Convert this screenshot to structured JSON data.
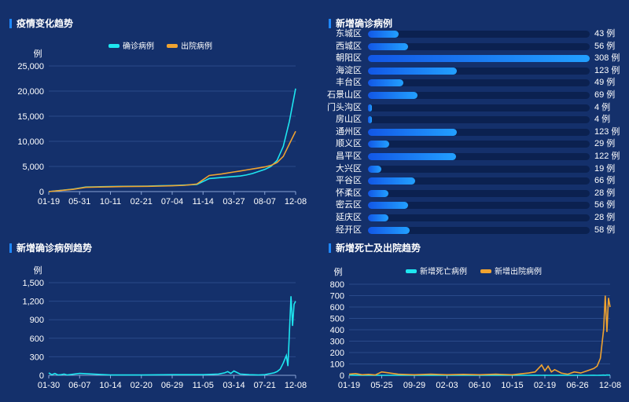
{
  "panels": {
    "trend": {
      "title": "疫情变化趋势"
    },
    "district": {
      "title": "新增确诊病例"
    },
    "newcases": {
      "title": "新增确诊病例趋势"
    },
    "deathdischarge": {
      "title": "新增死亡及出院趋势"
    }
  },
  "chart_data": [
    {
      "type": "line",
      "title": "疫情变化趋势",
      "ylabel": "例",
      "ylim": [
        0,
        25000
      ],
      "yticks": [
        "0",
        "5,000",
        "10,000",
        "15,000",
        "20,000",
        "25,000"
      ],
      "xticks": [
        "01-19",
        "05-31",
        "10-11",
        "02-21",
        "07-04",
        "11-14",
        "03-27",
        "08-07",
        "12-08"
      ],
      "x_index": [
        0,
        8,
        12,
        16,
        20,
        24,
        32,
        36,
        40,
        44,
        48,
        52,
        56,
        58,
        60,
        62,
        64,
        66,
        68,
        70,
        72,
        74,
        76,
        78,
        80
      ],
      "series": [
        {
          "name": "确诊病例",
          "color": "#1ee6f0",
          "values": [
            0,
            500,
            900,
            950,
            1000,
            1050,
            1100,
            1150,
            1200,
            1300,
            1400,
            2600,
            2800,
            2900,
            3000,
            3100,
            3300,
            3600,
            4000,
            4400,
            5000,
            6200,
            9000,
            14000,
            20500
          ]
        },
        {
          "name": "出院病例",
          "color": "#f0a330",
          "values": [
            0,
            450,
            850,
            900,
            950,
            1000,
            1050,
            1100,
            1150,
            1250,
            1500,
            3200,
            3500,
            3700,
            3900,
            4100,
            4300,
            4500,
            4700,
            4900,
            5200,
            5800,
            7000,
            9500,
            12000
          ]
        }
      ],
      "legend": "top-center",
      "grid": true
    },
    {
      "type": "bar",
      "title": "新增确诊病例",
      "orientation": "horizontal",
      "categories": [
        "东城区",
        "西城区",
        "朝阳区",
        "海淀区",
        "丰台区",
        "石景山区",
        "门头沟区",
        "房山区",
        "通州区",
        "顺义区",
        "昌平区",
        "大兴区",
        "平谷区",
        "怀柔区",
        "密云区",
        "延庆区",
        "经开区"
      ],
      "values": [
        43,
        56,
        308,
        123,
        49,
        69,
        4,
        4,
        123,
        29,
        122,
        19,
        66,
        28,
        56,
        28,
        58
      ],
      "value_labels": [
        "43 例",
        "56 例",
        "308 例",
        "123 例",
        "49 例",
        "69 例",
        "4 例",
        "4 例",
        "123 例",
        "29 例",
        "122 例",
        "19 例",
        "66 例",
        "28 例",
        "56 例",
        "28 例",
        "58 例"
      ],
      "xlim": [
        0,
        308
      ]
    },
    {
      "type": "line",
      "title": "新增确诊病例趋势",
      "ylabel": "例",
      "ylim": [
        0,
        1500
      ],
      "yticks": [
        "0",
        "300",
        "600",
        "900",
        "1,200",
        "1,500"
      ],
      "xticks": [
        "01-30",
        "06-07",
        "10-14",
        "02-20",
        "06-29",
        "11-05",
        "03-14",
        "07-21",
        "12-08"
      ],
      "x_index": [
        0,
        2,
        4,
        6,
        8,
        10,
        12,
        20,
        40,
        60,
        80,
        100,
        110,
        114,
        116,
        118,
        120,
        124,
        130,
        136,
        140,
        142,
        144,
        146,
        148,
        150,
        152,
        154,
        155,
        156,
        157,
        158,
        159,
        160
      ],
      "series": [
        {
          "name": "新增确诊病例",
          "color": "#1ee6f0",
          "values": [
            40,
            10,
            30,
            5,
            10,
            20,
            5,
            30,
            5,
            5,
            10,
            10,
            20,
            40,
            60,
            30,
            70,
            20,
            10,
            5,
            10,
            20,
            30,
            40,
            60,
            100,
            200,
            320,
            150,
            700,
            1280,
            800,
            1150,
            1200
          ]
        }
      ],
      "grid": true
    },
    {
      "type": "line",
      "title": "新增死亡及出院趋势",
      "ylabel": "例",
      "ylim": [
        0,
        800
      ],
      "yticks": [
        "0",
        "100",
        "200",
        "300",
        "400",
        "500",
        "600",
        "700",
        "800"
      ],
      "xticks": [
        "01-19",
        "05-25",
        "09-29",
        "02-03",
        "06-10",
        "10-15",
        "02-19",
        "06-26",
        "12-08"
      ],
      "x_index": [
        0,
        4,
        8,
        12,
        16,
        20,
        30,
        40,
        50,
        60,
        70,
        80,
        90,
        100,
        110,
        114,
        118,
        120,
        122,
        124,
        126,
        130,
        134,
        138,
        142,
        146,
        150,
        152,
        154,
        156,
        157,
        158,
        159,
        160
      ],
      "series": [
        {
          "name": "新增死亡病例",
          "color": "#1ee6f0",
          "values": [
            2,
            1,
            1,
            0,
            1,
            0,
            0,
            0,
            0,
            0,
            0,
            0,
            0,
            0,
            0,
            1,
            0,
            1,
            0,
            0,
            0,
            1,
            0,
            0,
            0,
            0,
            1,
            0,
            1,
            2,
            1,
            3,
            2,
            2
          ]
        },
        {
          "name": "新增出院病例",
          "color": "#f0a330",
          "values": [
            10,
            15,
            5,
            8,
            3,
            30,
            10,
            5,
            10,
            5,
            8,
            5,
            10,
            5,
            20,
            30,
            90,
            40,
            80,
            30,
            50,
            20,
            10,
            30,
            20,
            40,
            60,
            80,
            150,
            400,
            700,
            380,
            680,
            600
          ]
        }
      ],
      "legend": "top-center",
      "grid": true
    }
  ]
}
